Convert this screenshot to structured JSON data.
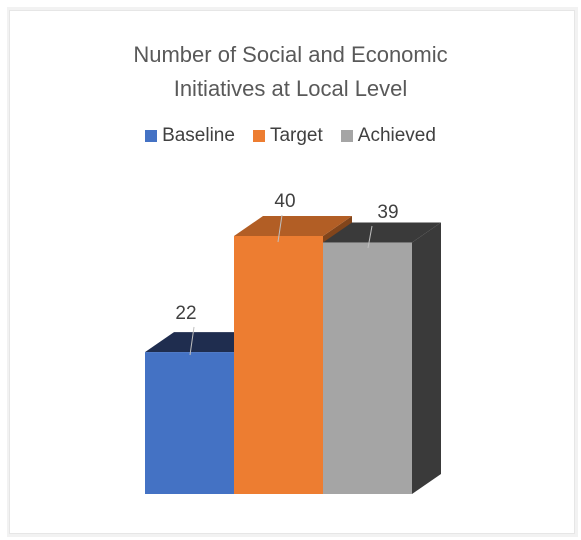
{
  "chart_data": {
    "type": "bar",
    "title": "Number of Social and Economic Initiatives at Local Level",
    "title_lines": [
      "Number of Social and Economic",
      "Initiatives at Local Level"
    ],
    "categories": [
      "Baseline",
      "Target",
      "Achieved"
    ],
    "values": [
      22,
      40,
      39
    ],
    "data_labels": [
      "22",
      "40",
      "39"
    ],
    "colors": [
      "#4472c4",
      "#ed7d31",
      "#a5a5a5"
    ],
    "legend": [
      "Baseline",
      "Target",
      "Achieved"
    ],
    "legend_position": "top",
    "style": "3d-column",
    "grid": false,
    "xlabel": "",
    "ylabel": ""
  }
}
